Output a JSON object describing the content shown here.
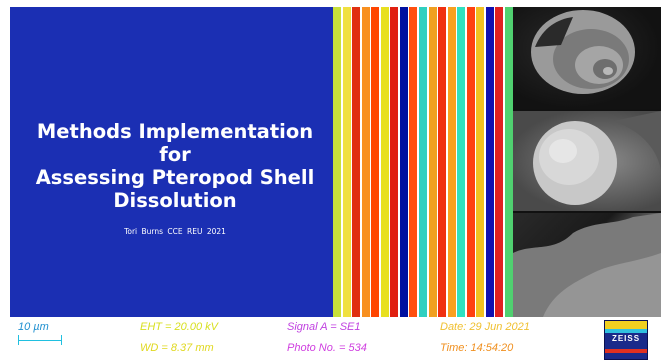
{
  "slide": {
    "title": "Methods Implementation for\nAssessing Pteropod Shell\nDissolution",
    "subtitle": "Tori Burns   CCE REU 2021"
  },
  "colors": {
    "title_background": "#1b2fb3",
    "stripes": [
      "#c8e03a",
      "#f0e040",
      "#e03010",
      "#f89020",
      "#ff4500",
      "#e8e020",
      "#e02010",
      "#0010a0",
      "#ff5010",
      "#30d0c0",
      "#f0a020",
      "#f03010",
      "#f8a020",
      "#30e0c0",
      "#ff4010",
      "#f0c020",
      "#1010b0",
      "#e02020",
      "#50d070"
    ]
  },
  "sem_images": [
    {
      "name": "sem-image-shell-spiral"
    },
    {
      "name": "sem-image-shell-close-up"
    },
    {
      "name": "sem-image-shell-surface"
    }
  ],
  "info_bar": {
    "scale": "10 µm",
    "eht": "EHT = 20.00 kV",
    "wd": "WD = 8.37 mm",
    "signal": "Signal A = SE1",
    "photo": "Photo No. = 534",
    "date": "Date: 29 Jun 2021",
    "time": "Time: 14:54:20",
    "logo_text": "ZEISS"
  }
}
